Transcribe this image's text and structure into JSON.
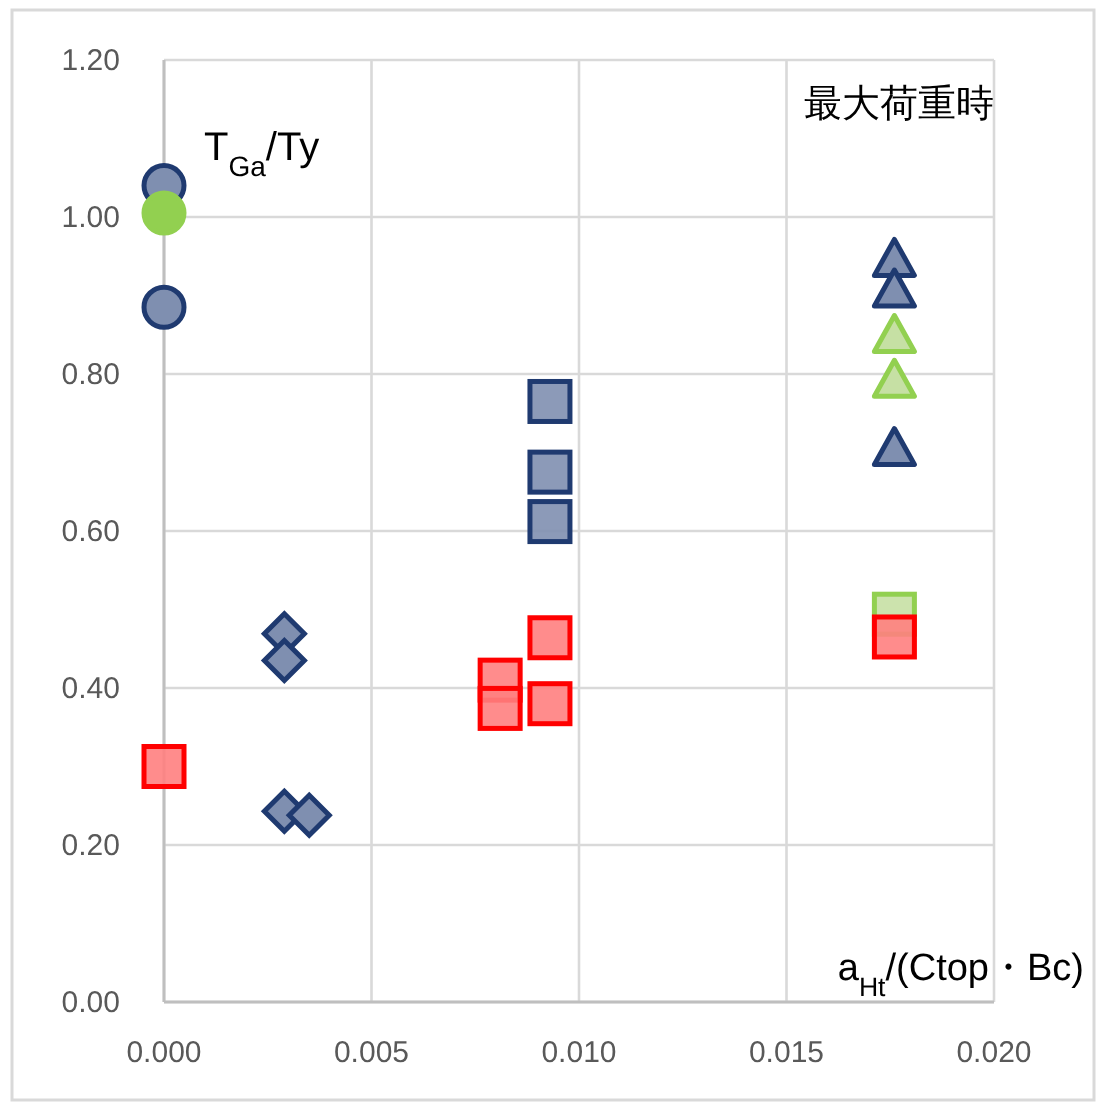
{
  "chart_data": {
    "type": "scatter",
    "ylabel": "T$_{Ga}$/Ty",
    "xlabel": "a$_{Ht}$/(Ctop・Bc)",
    "annotations": [
      "最大荷重時"
    ],
    "xlim": [
      0,
      0.02
    ],
    "xticks": [
      {
        "value": 0,
        "label": "0.000"
      },
      {
        "value": 0.005,
        "label": "0.005"
      },
      {
        "value": 0.01,
        "label": "0.010"
      },
      {
        "value": 0.015,
        "label": "0.015"
      },
      {
        "value": 0.02,
        "label": "0.020"
      }
    ],
    "ylim": [
      0,
      1.2
    ],
    "yticks": [
      {
        "value": 0,
        "label": "0.00"
      },
      {
        "value": 0.2,
        "label": "0.20"
      },
      {
        "value": 0.4,
        "label": "0.40"
      },
      {
        "value": 0.6,
        "label": "0.60"
      },
      {
        "value": 0.8,
        "label": "0.80"
      },
      {
        "value": 1.0,
        "label": "1.00"
      },
      {
        "value": 1.2,
        "label": "1.20"
      }
    ],
    "grid": true,
    "series": [
      {
        "marker": "circle",
        "color": "#7f8fb0",
        "x": [
          0,
          0
        ],
        "values": [
          1.04,
          0.885
        ]
      },
      {
        "marker": "circle",
        "color": "#92d050",
        "x": [
          0
        ],
        "values": [
          1.005
        ]
      },
      {
        "marker": "diamond",
        "color": "#7f8fb0",
        "x": [
          0.0029,
          0.0029,
          0.0029,
          0.0035
        ],
        "values": [
          0.469,
          0.435,
          0.243,
          0.238
        ]
      },
      {
        "marker": "square",
        "color": "#7f8fb0",
        "x": [
          0.0093,
          0.0093,
          0.0093
        ],
        "values": [
          0.765,
          0.675,
          0.612
        ]
      },
      {
        "marker": "square",
        "color": "#c6e0a4",
        "x": [
          0.0176
        ],
        "values": [
          0.494
        ]
      },
      {
        "marker": "square",
        "color": "#ff8080",
        "x": [
          0,
          0.0081,
          0.0081,
          0.0093,
          0.0093,
          0.0176
        ],
        "values": [
          0.3,
          0.41,
          0.374,
          0.464,
          0.38,
          0.465
        ]
      },
      {
        "marker": "triangle",
        "color": "#7f8fb0",
        "x": [
          0.0176,
          0.0176,
          0.0176
        ],
        "values": [
          0.946,
          0.907,
          0.705
        ]
      },
      {
        "marker": "triangle",
        "color": "#c6e0a4",
        "x": [
          0.0176,
          0.0176
        ],
        "values": [
          0.849,
          0.792
        ]
      }
    ]
  }
}
